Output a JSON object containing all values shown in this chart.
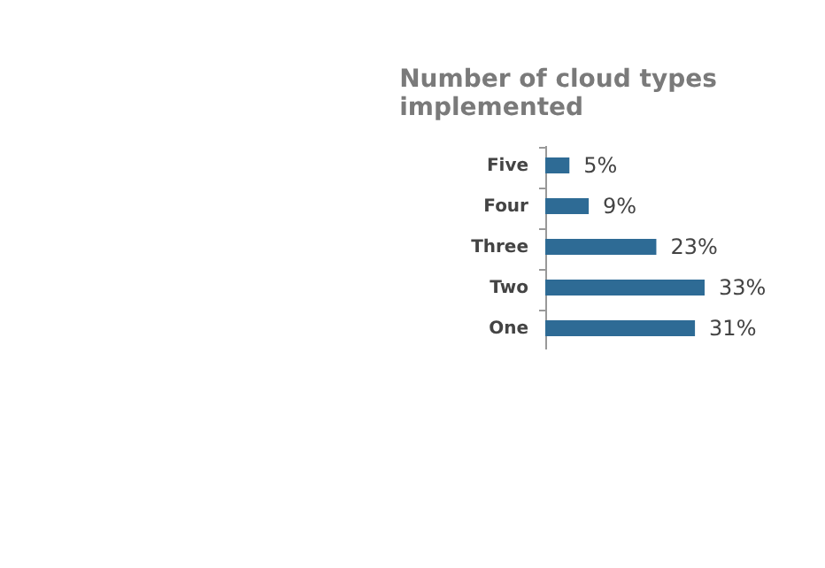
{
  "chart_data": {
    "type": "bar",
    "orientation": "horizontal",
    "title": "Number of cloud types implemented",
    "categories": [
      "Five",
      "Four",
      "Three",
      "Two",
      "One"
    ],
    "values": [
      5,
      9,
      23,
      33,
      31
    ],
    "value_labels": [
      "5%",
      "9%",
      "23%",
      "33%",
      "31%"
    ],
    "color": "#2e6b95"
  }
}
